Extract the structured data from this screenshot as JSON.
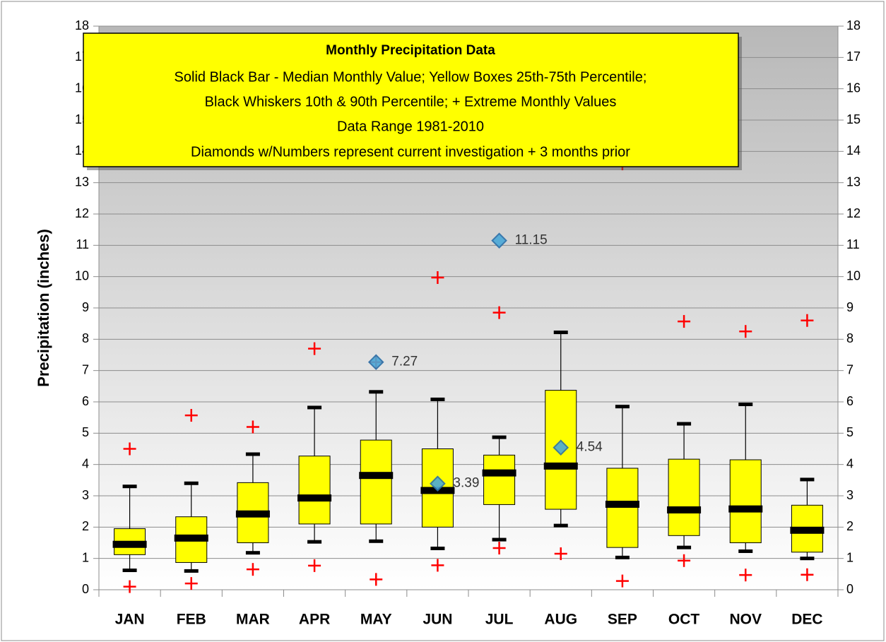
{
  "chart_data": {
    "type": "box",
    "title": "Monthly Precipitation Data",
    "notes": [
      "Solid Black Bar - Median Monthly  Value; Yellow Boxes 25th-75th Percentile;",
      "Black Whiskers 10th & 90th Percentile; + Extreme Monthly Values",
      "Data Range 1981-2010",
      "Diamonds w/Numbers represent current investigation + 3 months prior"
    ],
    "ylabel": "Precipitation (inches)",
    "categories": [
      "JAN",
      "FEB",
      "MAR",
      "APR",
      "MAY",
      "JUN",
      "JUL",
      "AUG",
      "SEP",
      "OCT",
      "NOV",
      "DEC"
    ],
    "whisker_low": [
      0.62,
      0.6,
      1.18,
      1.53,
      1.55,
      1.32,
      1.6,
      2.05,
      1.03,
      1.35,
      1.23,
      1.0
    ],
    "q1": [
      1.12,
      0.87,
      1.5,
      2.1,
      2.1,
      2.0,
      2.72,
      2.57,
      1.35,
      1.73,
      1.5,
      1.2
    ],
    "median": [
      1.45,
      1.65,
      2.42,
      2.93,
      3.65,
      3.17,
      3.73,
      3.95,
      2.73,
      2.55,
      2.58,
      1.9
    ],
    "q3": [
      1.95,
      2.33,
      3.42,
      4.27,
      4.78,
      4.5,
      4.3,
      6.37,
      3.88,
      4.17,
      4.15,
      2.7
    ],
    "whisker_high": [
      3.3,
      3.4,
      4.33,
      5.82,
      6.32,
      6.08,
      4.87,
      8.22,
      5.85,
      5.3,
      5.92,
      3.52
    ],
    "min": [
      0.1,
      0.2,
      0.65,
      0.77,
      0.33,
      0.78,
      1.33,
      1.15,
      0.28,
      0.93,
      0.47,
      0.48
    ],
    "max": [
      4.5,
      5.57,
      5.2,
      7.7,
      7.27,
      9.97,
      8.85,
      null,
      13.6,
      8.57,
      8.25,
      8.6
    ],
    "observed": [
      null,
      null,
      null,
      null,
      7.27,
      3.39,
      11.15,
      4.54,
      null,
      null,
      null,
      null
    ],
    "box_color": "#ffff00",
    "extreme_color": "#ff0000",
    "observed_color": "#4aa8d8",
    "ylim": [
      0,
      18
    ],
    "yticks": [
      0,
      1,
      2,
      3,
      4,
      5,
      6,
      7,
      8,
      9,
      10,
      11,
      12,
      13,
      14,
      15,
      16,
      17,
      18
    ],
    "grid": true
  }
}
